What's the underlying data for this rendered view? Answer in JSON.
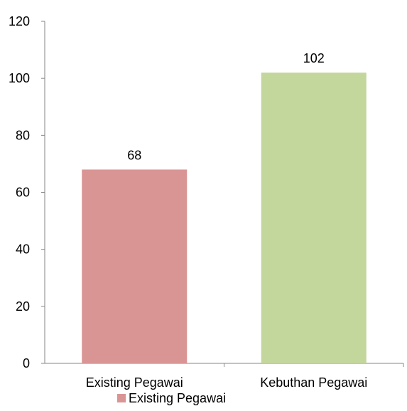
{
  "chart_data": {
    "type": "bar",
    "title": "",
    "xlabel": "",
    "ylabel": "",
    "categories": [
      "Existing Pegawai",
      "Kebuthan Pegawai"
    ],
    "values": [
      68,
      102
    ],
    "data_labels": [
      "68",
      "102"
    ],
    "bar_colors": [
      "#d99594",
      "#c3d69b"
    ],
    "ylim": [
      0,
      120
    ],
    "yticks": [
      0,
      20,
      40,
      60,
      80,
      100,
      120
    ],
    "ytick_labels": [
      "0",
      "20",
      "40",
      "60",
      "80",
      "100",
      "120"
    ],
    "grid": false,
    "legend": {
      "position": "bottom",
      "entries": [
        {
          "label": "Existing Pegawai",
          "color": "#d99594"
        }
      ]
    }
  }
}
